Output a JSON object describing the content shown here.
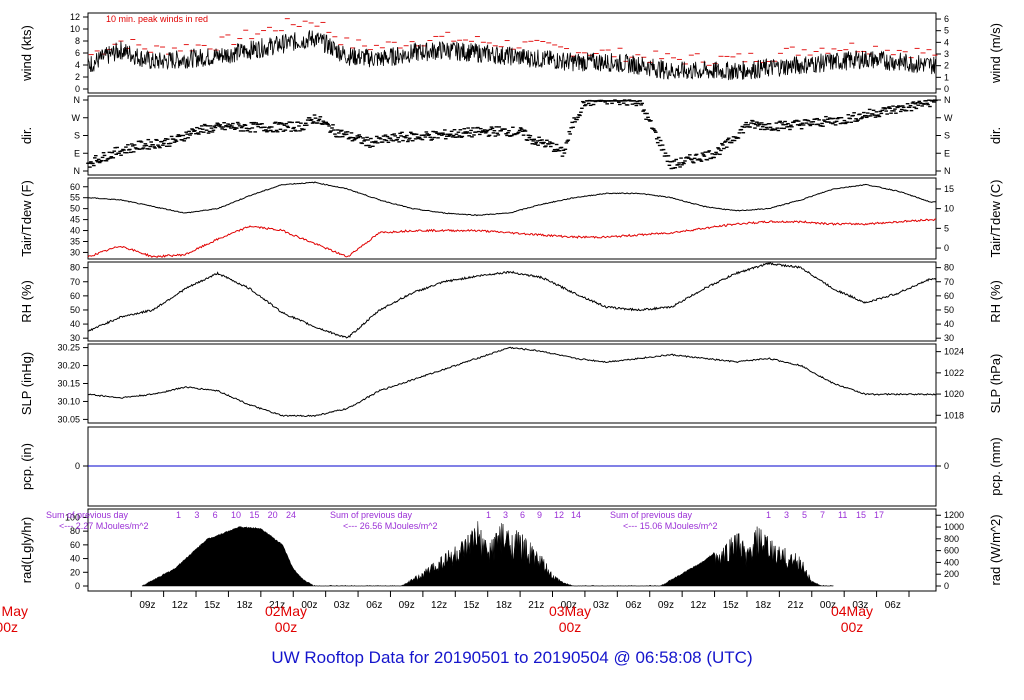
{
  "title": "UW Rooftop Data for 20190501  to  20190504 @ 06:58:08  (UTC)",
  "colors": {
    "title": "#1515cc",
    "peak": "#e00000",
    "dew": "#e00000",
    "pcp": "#0000cc",
    "annot": "#9a2fd6",
    "date": "#e00000",
    "trace": "#000000"
  },
  "x_axis": {
    "time_ticks": [
      "09z",
      "12z",
      "15z",
      "18z",
      "21z",
      "00z",
      "03z",
      "06z",
      "09z",
      "12z",
      "15z",
      "18z",
      "21z",
      "00z",
      "03z",
      "06z",
      "09z",
      "12z",
      "15z",
      "18z",
      "21z",
      "00z",
      "03z",
      "06z"
    ],
    "date_labels": [
      {
        "day": "May",
        "time": "00z"
      },
      {
        "day": "02May",
        "time": "00z"
      },
      {
        "day": "03May",
        "time": "00z"
      },
      {
        "day": "04May",
        "time": "00z"
      }
    ]
  },
  "chart_data": [
    {
      "type": "line",
      "panel": "wind",
      "ylabel": "wind (kts)",
      "ylabel_right": "wind (m/s)",
      "ylim": [
        0,
        12
      ],
      "yticks": [
        0,
        2,
        4,
        6,
        8,
        10,
        12
      ],
      "right_ticks": [
        0,
        1,
        2,
        3,
        4,
        5,
        6
      ],
      "annotation": "10 min. peak winds in red",
      "x_hours": [
        0,
        3,
        6,
        9,
        12,
        15,
        18,
        21,
        24,
        27,
        30,
        33,
        36,
        39,
        42,
        45,
        48,
        51,
        54,
        57,
        60,
        63,
        66,
        69,
        72,
        75,
        78
      ],
      "series": [
        {
          "values": [
            4.0,
            6.5,
            4.5,
            5.0,
            5.5,
            6.5,
            7.5,
            8.5,
            5.5,
            5.0,
            6.0,
            6.5,
            6.0,
            5.5,
            5.0,
            4.5,
            4.5,
            4.0,
            3.0,
            3.0,
            3.0,
            3.5,
            4.0,
            4.5,
            5.0,
            4.5,
            4.0
          ]
        },
        {
          "values": [
            5.5,
            8.0,
            6.5,
            7.0,
            7.5,
            9.0,
            10.5,
            11.5,
            7.5,
            7.0,
            8.0,
            8.5,
            8.0,
            7.5,
            7.0,
            6.5,
            6.0,
            5.5,
            5.0,
            5.0,
            5.0,
            5.5,
            6.5,
            7.0,
            7.0,
            6.5,
            6.0
          ]
        }
      ]
    },
    {
      "type": "scatter",
      "panel": "direction",
      "ylabel": "dir.",
      "ylabel_right": "dir.",
      "yticks": [
        "N",
        "E",
        "S",
        "W",
        "N"
      ],
      "x_hours": [
        0,
        3,
        5,
        8,
        10,
        13,
        16,
        19,
        20,
        21,
        23,
        26,
        29,
        32,
        35,
        38,
        40,
        41,
        43,
        44,
        45,
        46,
        48,
        51,
        54,
        56,
        58,
        59,
        61,
        64,
        67,
        70,
        73,
        76,
        78
      ],
      "series": [
        {
          "values": [
            0.45,
            1.15,
            1.45,
            1.7,
            2.3,
            2.5,
            2.45,
            2.5,
            2.55,
            3.0,
            2.2,
            1.6,
            1.9,
            2.0,
            2.15,
            2.25,
            2.2,
            1.8,
            1.4,
            1.0,
            2.8,
            3.9,
            4.0,
            3.95,
            0.3,
            0.7,
            1.0,
            1.4,
            2.6,
            2.55,
            2.7,
            2.9,
            3.3,
            3.6,
            3.9
          ]
        }
      ]
    },
    {
      "type": "line",
      "panel": "temperature",
      "ylabel": "Tair/Tdew (F)",
      "ylabel_right": "Tair/Tdew (C)",
      "ylim": [
        27,
        64
      ],
      "yticks": [
        30,
        35,
        40,
        45,
        50,
        55,
        60
      ],
      "right_ticks": [
        0,
        5,
        10,
        15
      ],
      "x_hours": [
        0,
        3,
        6,
        9,
        12,
        15,
        18,
        21,
        24,
        27,
        30,
        33,
        36,
        39,
        42,
        45,
        48,
        51,
        54,
        57,
        60,
        63,
        66,
        69,
        72,
        75,
        78
      ],
      "series": [
        {
          "values": [
            55,
            54,
            51,
            48,
            50,
            56,
            61,
            62,
            59,
            54,
            50,
            48,
            47,
            48,
            52,
            55,
            57,
            57,
            55,
            51,
            49,
            50,
            54,
            59,
            61,
            58,
            53
          ]
        },
        {
          "values": [
            28,
            33,
            28,
            29,
            36,
            42,
            40,
            34,
            28,
            39,
            40,
            40,
            40,
            39,
            38,
            37,
            37,
            38,
            39,
            41,
            43,
            44,
            44,
            43,
            43,
            44,
            45
          ]
        }
      ]
    },
    {
      "type": "line",
      "panel": "rh",
      "ylabel": "RH (%)",
      "ylabel_right": "RH (%)",
      "ylim": [
        28,
        84
      ],
      "yticks": [
        30,
        40,
        50,
        60,
        70,
        80
      ],
      "right_ticks": [
        30,
        40,
        50,
        60,
        70,
        80
      ],
      "x_hours": [
        0,
        3,
        6,
        9,
        12,
        15,
        18,
        21,
        24,
        27,
        30,
        33,
        36,
        39,
        42,
        45,
        48,
        51,
        54,
        57,
        60,
        63,
        66,
        69,
        72,
        75,
        78
      ],
      "series": [
        {
          "values": [
            35,
            45,
            50,
            65,
            76,
            65,
            48,
            38,
            30,
            50,
            62,
            70,
            74,
            77,
            73,
            62,
            52,
            50,
            52,
            65,
            76,
            83,
            80,
            65,
            55,
            62,
            72
          ]
        }
      ]
    },
    {
      "type": "line",
      "panel": "slp",
      "ylabel": "SLP (inHg)",
      "ylabel_right": "SLP (hPa)",
      "ylim": [
        30.04,
        30.26
      ],
      "yticks": [
        30.05,
        30.1,
        30.15,
        30.2,
        30.25
      ],
      "right_ticks": [
        1018,
        1020,
        1022,
        1024
      ],
      "x_hours": [
        0,
        3,
        6,
        9,
        12,
        15,
        18,
        21,
        24,
        27,
        30,
        33,
        36,
        39,
        42,
        45,
        48,
        51,
        54,
        57,
        60,
        63,
        66,
        69,
        72,
        75,
        78
      ],
      "series": [
        {
          "values": [
            30.12,
            30.11,
            30.12,
            30.14,
            30.13,
            30.09,
            30.06,
            30.06,
            30.08,
            30.13,
            30.16,
            30.19,
            30.22,
            30.25,
            30.24,
            30.22,
            30.21,
            30.22,
            30.23,
            30.22,
            30.21,
            30.22,
            30.2,
            30.15,
            30.12,
            30.12,
            30.12
          ]
        }
      ]
    },
    {
      "type": "line",
      "panel": "precipitation",
      "ylabel": "pcp. (in)",
      "ylabel_right": "pcp. (mm)",
      "yticks": [
        0
      ],
      "right_ticks": [
        0
      ],
      "series": [
        {
          "values": [
            0
          ]
        }
      ]
    },
    {
      "type": "area",
      "panel": "radiation",
      "ylabel": "rad(Lgly/hr)",
      "ylabel_right": "rad (W/m^2)",
      "ylim": [
        0,
        105
      ],
      "yticks": [
        0,
        20,
        40,
        60,
        80,
        100
      ],
      "right_ticks": [
        0,
        200,
        400,
        600,
        800,
        1000,
        1200
      ],
      "x_hours": [
        5,
        8,
        11,
        14,
        16,
        18,
        19,
        20,
        21,
        29,
        31,
        33,
        35,
        36,
        37,
        38,
        40,
        42,
        43,
        44,
        45,
        53,
        55,
        57,
        59,
        60,
        61,
        62,
        63,
        64,
        66,
        67,
        68,
        69
      ],
      "series": [
        {
          "values": [
            0,
            25,
            68,
            86,
            84,
            60,
            25,
            8,
            0,
            0,
            22,
            52,
            70,
            98,
            62,
            95,
            80,
            45,
            18,
            6,
            0,
            0,
            18,
            36,
            62,
            88,
            55,
            90,
            72,
            60,
            45,
            8,
            0,
            0
          ]
        }
      ],
      "annotations": [
        {
          "header": "Sum of previous day",
          "value": "<--- 2.27 MJoules/m^2",
          "hour_marks": [
            "1",
            "3",
            "6",
            "10",
            "15",
            "20",
            "24"
          ]
        },
        {
          "header": "Sum of previous day",
          "value": "<--- 26.56 MJoules/m^2",
          "hour_marks": [
            "1",
            "3",
            "6",
            "9",
            "12",
            "14"
          ]
        },
        {
          "header": "Sum of previous day",
          "value": "<--- 15.06 MJoules/m^2",
          "hour_marks": [
            "1",
            "3",
            "5",
            "7",
            "11",
            "15",
            "17"
          ]
        }
      ]
    }
  ]
}
